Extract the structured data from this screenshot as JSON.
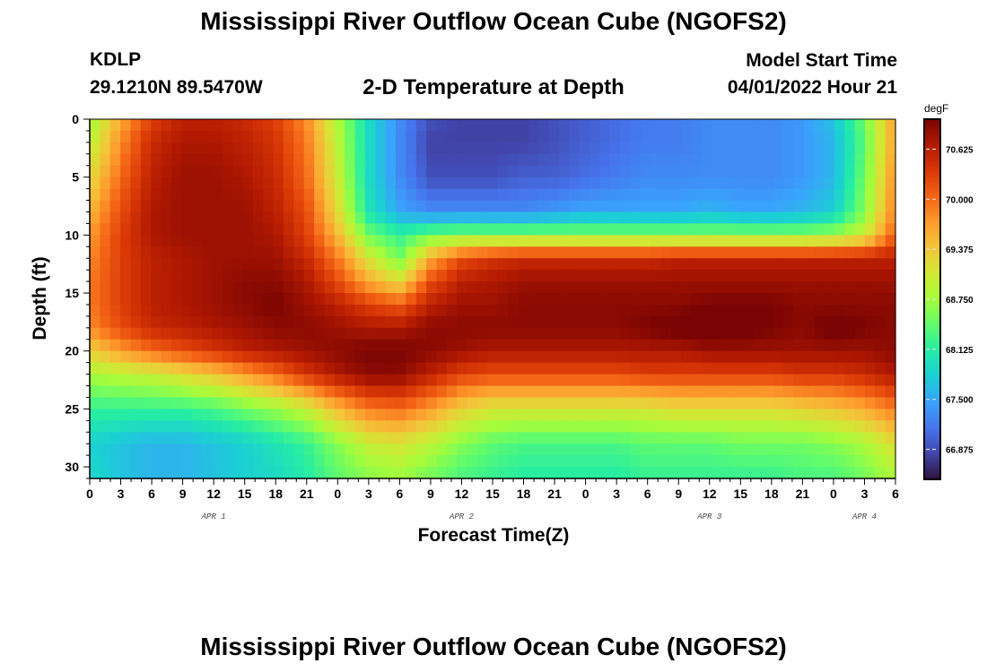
{
  "header": {
    "title": "Mississippi River Outflow Ocean Cube (NGOFS2)",
    "station": "KDLP",
    "coords": "29.1210N  89.5470W",
    "subtitle": "2-D Temperature at Depth",
    "model_start_label": "Model Start Time",
    "model_start_value": "04/01/2022 Hour 21"
  },
  "footer": {
    "title": "Mississippi River Outflow Ocean Cube (NGOFS2)"
  },
  "chart_data": {
    "type": "heatmap",
    "xlabel": "Forecast Time(Z)",
    "ylabel": "Depth (ft)",
    "x_tick_labels": [
      "0",
      "3",
      "6",
      "9",
      "12",
      "15",
      "18",
      "21",
      "0",
      "3",
      "6",
      "9",
      "12",
      "15",
      "18",
      "21",
      "0",
      "3",
      "6",
      "9",
      "12",
      "15",
      "18",
      "21",
      "0",
      "3",
      "6"
    ],
    "day_labels": [
      {
        "label": "APR 1",
        "tick_index": 4
      },
      {
        "label": "APR 2",
        "tick_index": 12
      },
      {
        "label": "APR 3",
        "tick_index": 20
      },
      {
        "label": "APR 4",
        "tick_index": 25
      }
    ],
    "x_range_hours": [
      0,
      78
    ],
    "y_ticks": [
      0,
      5,
      10,
      15,
      20,
      25,
      30
    ],
    "ylim": [
      0,
      31
    ],
    "y_inverted": true,
    "colorbar": {
      "unit": "degF",
      "ticks": [
        "70.625",
        "70.000",
        "69.375",
        "68.750",
        "68.125",
        "67.500",
        "66.875"
      ],
      "range": [
        66.5,
        71.0
      ],
      "colors": [
        "#30123b",
        "#4145ab",
        "#4675ed",
        "#39a2fc",
        "#1bcfd4",
        "#24eca6",
        "#61fc6c",
        "#a4fc3b",
        "#d1e834",
        "#f3c63a",
        "#fe9b2d",
        "#f36315",
        "#d93806",
        "#b11901",
        "#7a0403"
      ]
    },
    "temperature_grid_degF": {
      "depths_ft": [
        0,
        2,
        5,
        8,
        10,
        12,
        14,
        16,
        18,
        20,
        22,
        25,
        28,
        31
      ],
      "hours": [
        0,
        3,
        6,
        9,
        12,
        15,
        18,
        21,
        24,
        27,
        30,
        33,
        36,
        39,
        42,
        45,
        48,
        51,
        54,
        57,
        60,
        63,
        66,
        69,
        72,
        75,
        78
      ],
      "values": [
        [
          68.7,
          69.6,
          70.3,
          70.6,
          70.6,
          70.5,
          70.3,
          69.8,
          68.8,
          67.9,
          67.3,
          66.9,
          66.8,
          66.8,
          66.8,
          66.9,
          67.0,
          67.1,
          67.2,
          67.2,
          67.3,
          67.3,
          67.3,
          67.4,
          67.7,
          68.5,
          69.7
        ],
        [
          68.9,
          69.8,
          70.5,
          70.7,
          70.7,
          70.6,
          70.4,
          69.9,
          68.9,
          67.9,
          67.3,
          66.8,
          66.8,
          66.8,
          66.8,
          66.9,
          67.0,
          67.1,
          67.2,
          67.2,
          67.3,
          67.3,
          67.3,
          67.4,
          67.6,
          68.4,
          69.7
        ],
        [
          69.2,
          70.0,
          70.6,
          70.8,
          70.8,
          70.7,
          70.5,
          70.0,
          69.0,
          67.9,
          67.3,
          66.9,
          66.9,
          66.9,
          67.0,
          67.0,
          67.1,
          67.2,
          67.3,
          67.3,
          67.3,
          67.3,
          67.3,
          67.4,
          67.6,
          68.5,
          69.8
        ],
        [
          69.5,
          70.2,
          70.7,
          70.8,
          70.8,
          70.8,
          70.6,
          70.2,
          69.2,
          68.0,
          67.5,
          67.3,
          67.3,
          67.3,
          67.3,
          67.4,
          67.5,
          67.5,
          67.5,
          67.5,
          67.6,
          67.5,
          67.5,
          67.6,
          67.8,
          68.6,
          69.9
        ],
        [
          69.7,
          70.3,
          70.7,
          70.8,
          70.8,
          70.8,
          70.7,
          70.3,
          69.5,
          68.5,
          68.2,
          68.5,
          68.6,
          68.6,
          68.6,
          68.6,
          68.6,
          68.6,
          68.6,
          68.6,
          68.6,
          68.6,
          68.6,
          68.6,
          68.7,
          69.0,
          70.1
        ],
        [
          69.8,
          70.3,
          70.6,
          70.7,
          70.8,
          70.8,
          70.8,
          70.5,
          69.9,
          69.1,
          68.5,
          69.6,
          70.2,
          70.4,
          70.5,
          70.5,
          70.5,
          70.5,
          70.5,
          70.6,
          70.6,
          70.6,
          70.6,
          70.6,
          70.6,
          70.6,
          70.6
        ],
        [
          69.9,
          70.3,
          70.6,
          70.7,
          70.8,
          70.9,
          70.9,
          70.7,
          70.2,
          69.6,
          69.2,
          70.2,
          70.6,
          70.7,
          70.8,
          70.8,
          70.8,
          70.8,
          70.8,
          70.8,
          70.8,
          70.8,
          70.8,
          70.8,
          70.8,
          70.8,
          70.8
        ],
        [
          69.9,
          70.3,
          70.6,
          70.7,
          70.8,
          70.9,
          71.0,
          70.8,
          70.6,
          70.3,
          70.1,
          70.6,
          70.8,
          70.8,
          70.9,
          70.9,
          70.9,
          70.9,
          70.9,
          70.9,
          71.0,
          71.0,
          71.0,
          70.9,
          70.9,
          70.9,
          70.9
        ],
        [
          69.8,
          70.2,
          70.5,
          70.6,
          70.7,
          70.8,
          70.9,
          70.9,
          70.8,
          70.7,
          70.7,
          70.9,
          70.9,
          70.9,
          70.9,
          70.9,
          70.9,
          70.9,
          71.0,
          71.1,
          71.2,
          71.1,
          71.0,
          70.9,
          71.1,
          71.0,
          70.9
        ],
        [
          69.3,
          69.7,
          70.0,
          70.2,
          70.4,
          70.6,
          70.7,
          70.8,
          70.9,
          71.0,
          71.0,
          70.9,
          70.8,
          70.7,
          70.7,
          70.7,
          70.7,
          70.7,
          70.7,
          70.7,
          70.8,
          70.8,
          70.8,
          70.8,
          70.8,
          70.8,
          70.9
        ],
        [
          68.8,
          68.9,
          69.0,
          69.2,
          69.4,
          69.7,
          70.0,
          70.4,
          70.7,
          70.9,
          70.9,
          70.6,
          70.3,
          70.2,
          70.2,
          70.2,
          70.2,
          70.2,
          70.3,
          70.3,
          70.3,
          70.3,
          70.3,
          70.4,
          70.4,
          70.5,
          70.7
        ],
        [
          68.2,
          68.2,
          68.2,
          68.2,
          68.3,
          68.5,
          68.7,
          69.0,
          69.5,
          69.9,
          70.0,
          69.7,
          69.3,
          69.1,
          69.1,
          69.1,
          69.1,
          69.1,
          69.1,
          69.2,
          69.2,
          69.2,
          69.2,
          69.3,
          69.4,
          69.6,
          69.9
        ],
        [
          67.8,
          67.7,
          67.6,
          67.6,
          67.7,
          67.8,
          68.0,
          68.2,
          68.6,
          69.0,
          69.1,
          68.9,
          68.6,
          68.4,
          68.3,
          68.3,
          68.3,
          68.3,
          68.4,
          68.4,
          68.4,
          68.5,
          68.5,
          68.5,
          68.6,
          68.8,
          69.2
        ],
        [
          67.9,
          67.7,
          67.6,
          67.6,
          67.7,
          67.8,
          67.9,
          68.1,
          68.4,
          68.6,
          68.7,
          68.5,
          68.3,
          68.2,
          68.1,
          68.1,
          68.1,
          68.1,
          68.2,
          68.2,
          68.2,
          68.2,
          68.2,
          68.3,
          68.3,
          68.5,
          68.8
        ]
      ]
    },
    "grid": false
  }
}
